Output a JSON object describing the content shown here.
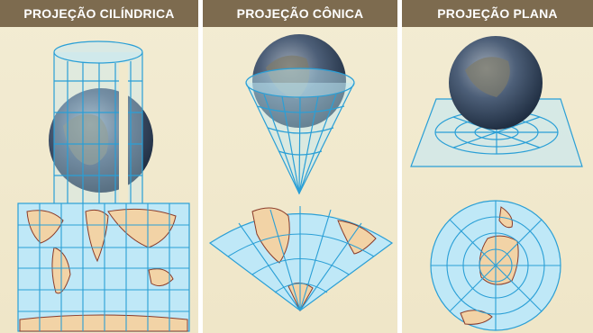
{
  "panels": [
    {
      "title": "PROJEÇÃO CILÍNDRICA"
    },
    {
      "title": "PROJEÇÃO CÔNICA"
    },
    {
      "title": "PROJEÇÃO PLANA"
    }
  ],
  "colors": {
    "header_bg": "#7d6b4f",
    "panel_bg": "#f1e9cc",
    "grid_line": "#2a9fd6",
    "map_water": "#bfe8f7",
    "land": "#f2d3a6",
    "coast": "#8a3b2a"
  }
}
